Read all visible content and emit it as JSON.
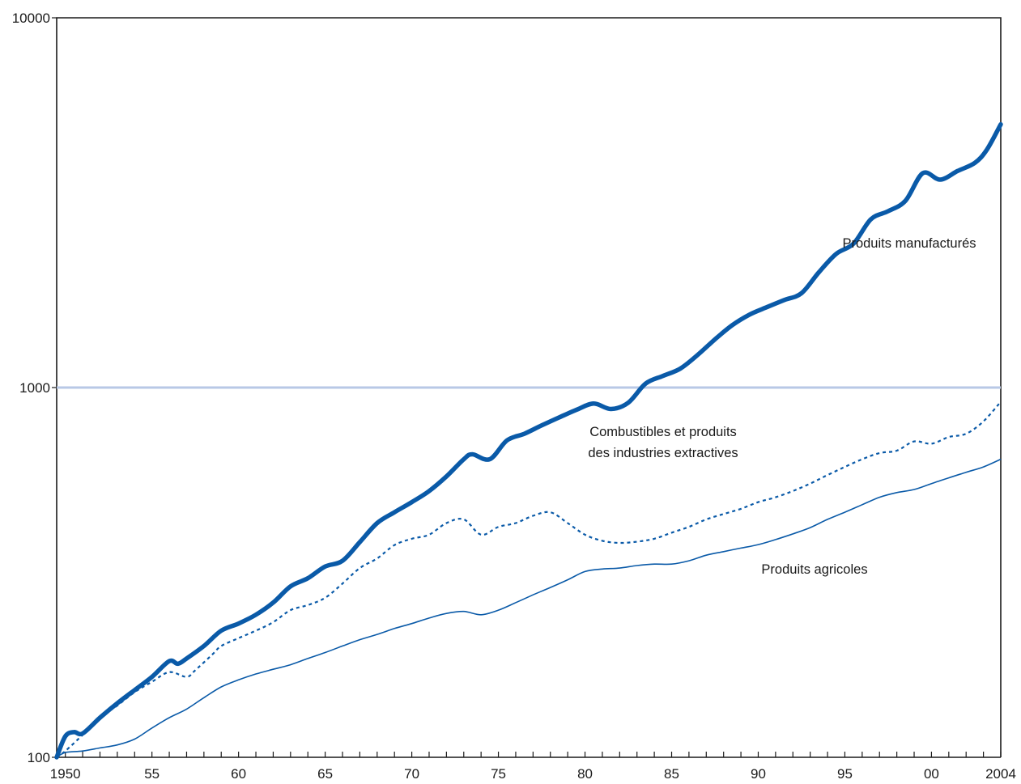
{
  "colors": {
    "series": "#0a5aa8",
    "reference_line": "#b8c8e6",
    "axis": "#1a1a1a"
  },
  "chart_data": {
    "type": "line",
    "title": "",
    "xlabel": "",
    "ylabel": "",
    "yscale": "log",
    "xlim": [
      1949.5,
      2004
    ],
    "ylim": [
      100,
      10000
    ],
    "y_ticks": [
      {
        "value": 100,
        "label": "100"
      },
      {
        "value": 1000,
        "label": "1000"
      },
      {
        "value": 10000,
        "label": "10000"
      }
    ],
    "x_ticks": [
      {
        "value": 1950,
        "label": "1950"
      },
      {
        "value": 1955,
        "label": "55"
      },
      {
        "value": 1960,
        "label": "60"
      },
      {
        "value": 1965,
        "label": "65"
      },
      {
        "value": 1970,
        "label": "70"
      },
      {
        "value": 1975,
        "label": "75"
      },
      {
        "value": 1980,
        "label": "80"
      },
      {
        "value": 1985,
        "label": "85"
      },
      {
        "value": 1990,
        "label": "90"
      },
      {
        "value": 1995,
        "label": "95"
      },
      {
        "value": 2000,
        "label": "00"
      },
      {
        "value": 2004,
        "label": "2004"
      }
    ],
    "reference_line": 1000,
    "grid": false,
    "legend": "none",
    "series": [
      {
        "name": "Produits manufacturés",
        "style": "thick",
        "points": [
          [
            1949.5,
            100
          ],
          [
            1950,
            114
          ],
          [
            1950.5,
            117
          ],
          [
            1951,
            116
          ],
          [
            1952,
            128
          ],
          [
            1953,
            140
          ],
          [
            1954,
            152
          ],
          [
            1955,
            165
          ],
          [
            1956,
            182
          ],
          [
            1956.5,
            179
          ],
          [
            1957,
            185
          ],
          [
            1958,
            200
          ],
          [
            1959,
            220
          ],
          [
            1960,
            230
          ],
          [
            1961,
            243
          ],
          [
            1962,
            262
          ],
          [
            1963,
            290
          ],
          [
            1964,
            305
          ],
          [
            1965,
            328
          ],
          [
            1966,
            340
          ],
          [
            1967,
            382
          ],
          [
            1968,
            430
          ],
          [
            1969,
            460
          ],
          [
            1970,
            490
          ],
          [
            1971,
            525
          ],
          [
            1972,
            575
          ],
          [
            1973,
            640
          ],
          [
            1973.5,
            660
          ],
          [
            1974.5,
            640
          ],
          [
            1975.5,
            720
          ],
          [
            1976.5,
            750
          ],
          [
            1977.5,
            790
          ],
          [
            1978.5,
            830
          ],
          [
            1979.5,
            870
          ],
          [
            1980.5,
            905
          ],
          [
            1981.5,
            875
          ],
          [
            1982.5,
            910
          ],
          [
            1983.5,
            1025
          ],
          [
            1984.5,
            1075
          ],
          [
            1985.5,
            1125
          ],
          [
            1986.5,
            1225
          ],
          [
            1987.5,
            1350
          ],
          [
            1988.5,
            1475
          ],
          [
            1989.5,
            1575
          ],
          [
            1990.5,
            1650
          ],
          [
            1991.5,
            1725
          ],
          [
            1992.5,
            1800
          ],
          [
            1993.5,
            2050
          ],
          [
            1994.5,
            2300
          ],
          [
            1995.5,
            2450
          ],
          [
            1996.5,
            2850
          ],
          [
            1997.5,
            3000
          ],
          [
            1998.5,
            3200
          ],
          [
            1999.5,
            3800
          ],
          [
            2000.5,
            3650
          ],
          [
            2001.5,
            3850
          ],
          [
            2002.5,
            4050
          ],
          [
            2003.2,
            4400
          ],
          [
            2004,
            5150
          ]
        ]
      },
      {
        "name": "Combustibles et produits des industries extractives",
        "name_lines": [
          "Combustibles et produits",
          "des industries extractives"
        ],
        "style": "dotted",
        "points": [
          [
            1949.5,
            100
          ],
          [
            1950,
            104
          ],
          [
            1951,
            115
          ],
          [
            1952,
            128
          ],
          [
            1953,
            138
          ],
          [
            1954,
            150
          ],
          [
            1955,
            160
          ],
          [
            1956,
            170
          ],
          [
            1957,
            165
          ],
          [
            1957.5,
            172
          ],
          [
            1958.5,
            190
          ],
          [
            1959,
            200
          ],
          [
            1960,
            210
          ],
          [
            1961,
            220
          ],
          [
            1962,
            232
          ],
          [
            1963,
            250
          ],
          [
            1964,
            258
          ],
          [
            1965,
            270
          ],
          [
            1966,
            295
          ],
          [
            1967,
            325
          ],
          [
            1968,
            345
          ],
          [
            1969,
            375
          ],
          [
            1970,
            390
          ],
          [
            1971,
            400
          ],
          [
            1972,
            430
          ],
          [
            1973,
            440
          ],
          [
            1974,
            400
          ],
          [
            1975,
            420
          ],
          [
            1976,
            430
          ],
          [
            1977,
            450
          ],
          [
            1978,
            460
          ],
          [
            1979,
            430
          ],
          [
            1980,
            400
          ],
          [
            1981,
            385
          ],
          [
            1982,
            380
          ],
          [
            1983,
            383
          ],
          [
            1984,
            390
          ],
          [
            1985,
            405
          ],
          [
            1986,
            420
          ],
          [
            1987,
            440
          ],
          [
            1988,
            455
          ],
          [
            1989,
            470
          ],
          [
            1990,
            490
          ],
          [
            1991,
            505
          ],
          [
            1992,
            525
          ],
          [
            1993,
            550
          ],
          [
            1994,
            580
          ],
          [
            1995,
            610
          ],
          [
            1996,
            640
          ],
          [
            1997,
            665
          ],
          [
            1998,
            675
          ],
          [
            1999,
            715
          ],
          [
            2000,
            705
          ],
          [
            2001,
            735
          ],
          [
            2002,
            750
          ],
          [
            2003,
            810
          ],
          [
            2004,
            915
          ]
        ]
      },
      {
        "name": "Produits agricoles",
        "style": "thin",
        "points": [
          [
            1949.5,
            100
          ],
          [
            1950,
            103
          ],
          [
            1951,
            104
          ],
          [
            1952,
            106
          ],
          [
            1953,
            108
          ],
          [
            1954,
            112
          ],
          [
            1955,
            120
          ],
          [
            1956,
            128
          ],
          [
            1957,
            135
          ],
          [
            1958,
            145
          ],
          [
            1959,
            155
          ],
          [
            1960,
            162
          ],
          [
            1961,
            168
          ],
          [
            1962,
            173
          ],
          [
            1963,
            178
          ],
          [
            1964,
            185
          ],
          [
            1965,
            192
          ],
          [
            1966,
            200
          ],
          [
            1967,
            208
          ],
          [
            1968,
            215
          ],
          [
            1969,
            223
          ],
          [
            1970,
            230
          ],
          [
            1971,
            238
          ],
          [
            1972,
            245
          ],
          [
            1973,
            248
          ],
          [
            1974,
            243
          ],
          [
            1975,
            250
          ],
          [
            1976,
            262
          ],
          [
            1977,
            275
          ],
          [
            1978,
            288
          ],
          [
            1979,
            302
          ],
          [
            1980,
            318
          ],
          [
            1981,
            323
          ],
          [
            1982,
            325
          ],
          [
            1983,
            330
          ],
          [
            1984,
            333
          ],
          [
            1985,
            333
          ],
          [
            1986,
            340
          ],
          [
            1987,
            352
          ],
          [
            1988,
            360
          ],
          [
            1989,
            368
          ],
          [
            1990,
            376
          ],
          [
            1991,
            388
          ],
          [
            1992,
            402
          ],
          [
            1993,
            418
          ],
          [
            1994,
            440
          ],
          [
            1995,
            460
          ],
          [
            1996,
            482
          ],
          [
            1997,
            505
          ],
          [
            1998,
            520
          ],
          [
            1999,
            530
          ],
          [
            2000,
            550
          ],
          [
            2001,
            570
          ],
          [
            2002,
            590
          ],
          [
            2003,
            610
          ],
          [
            2004,
            640
          ]
        ]
      }
    ]
  }
}
